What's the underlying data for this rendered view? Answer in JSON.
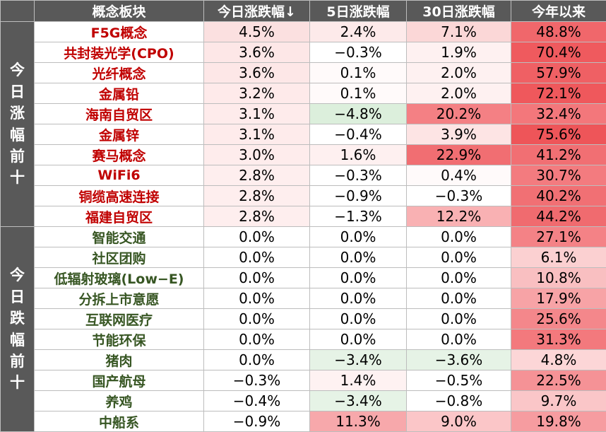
{
  "headers": [
    "概念板块",
    "今日涨跌幅↓",
    "5日涨跌幅",
    "30日涨跌幅",
    "今年以来"
  ],
  "groups": [
    {
      "label": "今日涨幅前十",
      "name_color": "#c00000",
      "rows": [
        {
          "name": "F5G概念",
          "d1": "4.5%",
          "d5": "2.4%",
          "d30": "7.1%",
          "ytd": "48.8%",
          "bg": [
            "#fbe0e0",
            "#fdeaea",
            "#fbd7d7",
            "#f0676b"
          ]
        },
        {
          "name": "共封装光学(CPO)",
          "d1": "3.6%",
          "d5": "−0.3%",
          "d30": "1.9%",
          "ytd": "70.4%",
          "bg": [
            "#fde7e7",
            "#ffffff",
            "#fef1f1",
            "#ef5a5e"
          ]
        },
        {
          "name": "光纤概念",
          "d1": "3.6%",
          "d5": "0.1%",
          "d30": "2.0%",
          "ytd": "57.9%",
          "bg": [
            "#fde7e7",
            "#fffafa",
            "#fef1f1",
            "#ef6064"
          ]
        },
        {
          "name": "金属铅",
          "d1": "3.2%",
          "d5": "0.1%",
          "d30": "2.0%",
          "ytd": "72.1%",
          "bg": [
            "#feeaea",
            "#fffafa",
            "#fef1f1",
            "#ef585c"
          ]
        },
        {
          "name": "海南自贸区",
          "d1": "3.1%",
          "d5": "−4.8%",
          "d30": "20.2%",
          "ytd": "32.4%",
          "bg": [
            "#feebeb",
            "#dcefdc",
            "#f48084",
            "#f3777b"
          ]
        },
        {
          "name": "金属锌",
          "d1": "3.1%",
          "d5": "−0.4%",
          "d30": "3.9%",
          "ytd": "75.6%",
          "bg": [
            "#feebeb",
            "#ffffff",
            "#fde4e4",
            "#ee5559"
          ]
        },
        {
          "name": "赛马概念",
          "d1": "3.0%",
          "d5": "1.6%",
          "d30": "22.9%",
          "ytd": "41.2%",
          "bg": [
            "#feecec",
            "#fef0f0",
            "#f16e72",
            "#f16f73"
          ]
        },
        {
          "name": "WiFi6",
          "d1": "2.8%",
          "d5": "−0.3%",
          "d30": "0.4%",
          "ytd": "30.7%",
          "bg": [
            "#feeeee",
            "#ffffff",
            "#fffafa",
            "#f37b7f"
          ]
        },
        {
          "name": "铜缆高速连接",
          "d1": "2.8%",
          "d5": "−0.9%",
          "d30": "−0.3%",
          "ytd": "40.2%",
          "bg": [
            "#feeeee",
            "#ffffff",
            "#ffffff",
            "#f17074"
          ]
        },
        {
          "name": "福建自贸区",
          "d1": "2.8%",
          "d5": "−1.3%",
          "d30": "12.2%",
          "ytd": "44.2%",
          "bg": [
            "#feeeee",
            "#ffffff",
            "#f9b1b3",
            "#f06b6f"
          ]
        }
      ]
    },
    {
      "label": "今日跌幅前十",
      "name_color": "#375623",
      "rows": [
        {
          "name": "智能交通",
          "d1": "0.0%",
          "d5": "0.0%",
          "d30": "0.0%",
          "ytd": "27.1%",
          "bg": [
            "#ffffff",
            "#ffffff",
            "#ffffff",
            "#f48286"
          ]
        },
        {
          "name": "社区团购",
          "d1": "0.0%",
          "d5": "0.0%",
          "d30": "0.0%",
          "ytd": "6.1%",
          "bg": [
            "#ffffff",
            "#ffffff",
            "#ffffff",
            "#fbd0d1"
          ]
        },
        {
          "name": "低辐射玻璃(Low−E)",
          "d1": "0.0%",
          "d5": "0.0%",
          "d30": "0.0%",
          "ytd": "10.8%",
          "bg": [
            "#ffffff",
            "#ffffff",
            "#ffffff",
            "#f9bfc1"
          ]
        },
        {
          "name": "分拆上市意愿",
          "d1": "0.0%",
          "d5": "0.0%",
          "d30": "0.0%",
          "ytd": "17.9%",
          "bg": [
            "#ffffff",
            "#ffffff",
            "#ffffff",
            "#f7a3a6"
          ]
        },
        {
          "name": "互联网医疗",
          "d1": "0.0%",
          "d5": "0.0%",
          "d30": "0.0%",
          "ytd": "25.6%",
          "bg": [
            "#ffffff",
            "#ffffff",
            "#ffffff",
            "#f4878b"
          ]
        },
        {
          "name": "节能环保",
          "d1": "0.0%",
          "d5": "0.0%",
          "d30": "0.0%",
          "ytd": "31.3%",
          "bg": [
            "#ffffff",
            "#ffffff",
            "#ffffff",
            "#f3797d"
          ]
        },
        {
          "name": "猪肉",
          "d1": "0.0%",
          "d5": "−3.4%",
          "d30": "−3.6%",
          "ytd": "4.8%",
          "bg": [
            "#ffffff",
            "#e6f3e6",
            "#e6f3e6",
            "#fcd6d7"
          ]
        },
        {
          "name": "国产航母",
          "d1": "−0.3%",
          "d5": "1.4%",
          "d30": "−0.5%",
          "ytd": "22.5%",
          "bg": [
            "#ffffff",
            "#fef2f2",
            "#ffffff",
            "#f59296"
          ]
        },
        {
          "name": "养鸡",
          "d1": "−0.4%",
          "d5": "−3.4%",
          "d30": "−0.8%",
          "ytd": "9.7%",
          "bg": [
            "#ffffff",
            "#e6f3e6",
            "#ffffff",
            "#fac6c8"
          ]
        },
        {
          "name": "中船系",
          "d1": "−0.9%",
          "d5": "11.3%",
          "d30": "9.0%",
          "ytd": "19.8%",
          "bg": [
            "#ffffff",
            "#f7a8ab",
            "#fbc6c8",
            "#f69ca0"
          ]
        }
      ]
    }
  ]
}
